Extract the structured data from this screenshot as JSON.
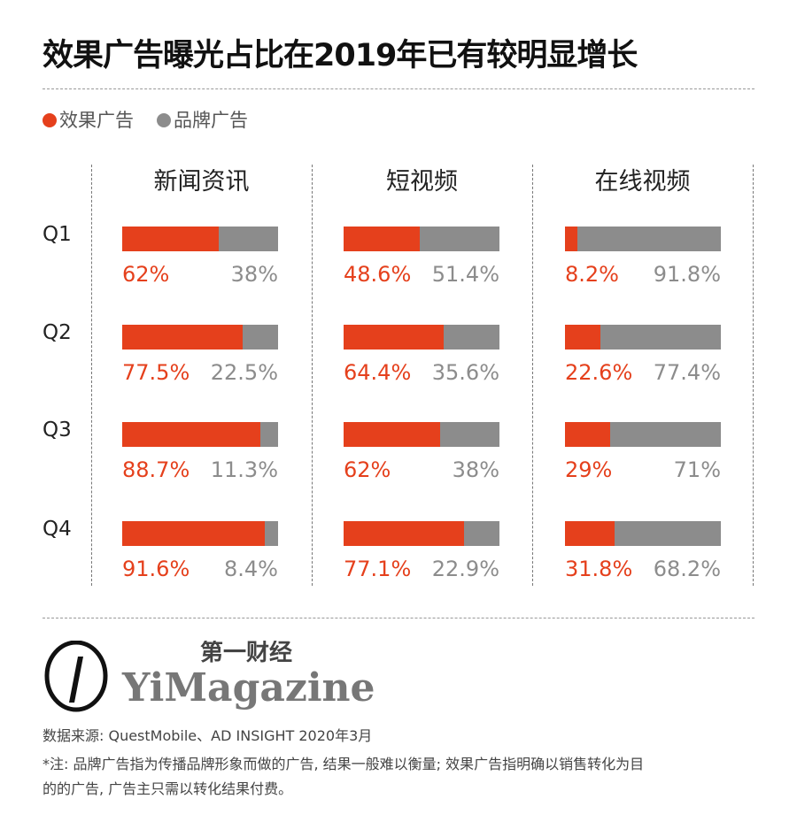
{
  "title": "效果广告曝光占比在2019年已有较明显增长",
  "legend": [
    {
      "label": "效果广告",
      "color": "#e5401c"
    },
    {
      "label": "品牌广告",
      "color": "#8c8c8c"
    }
  ],
  "chart_data": {
    "type": "bar",
    "stacked": true,
    "orientation": "horizontal",
    "title": "效果广告曝光占比在2019年已有较明显增长",
    "categories": [
      "Q1",
      "Q2",
      "Q3",
      "Q4"
    ],
    "panels": [
      {
        "name": "新闻资讯",
        "series": [
          {
            "name": "效果广告",
            "values": [
              62,
              77.5,
              88.7,
              91.6
            ],
            "labels": [
              "62%",
              "77.5%",
              "88.7%",
              "91.6%"
            ]
          },
          {
            "name": "品牌广告",
            "values": [
              38,
              22.5,
              11.3,
              8.4
            ],
            "labels": [
              "38%",
              "22.5%",
              "11.3%",
              "8.4%"
            ]
          }
        ]
      },
      {
        "name": "短视频",
        "series": [
          {
            "name": "效果广告",
            "values": [
              48.6,
              64.4,
              62,
              77.1
            ],
            "labels": [
              "48.6%",
              "64.4%",
              "62%",
              "77.1%"
            ]
          },
          {
            "name": "品牌广告",
            "values": [
              51.4,
              35.6,
              38,
              22.9
            ],
            "labels": [
              "51.4%",
              "35.6%",
              "38%",
              "22.9%"
            ]
          }
        ]
      },
      {
        "name": "在线视频",
        "series": [
          {
            "name": "效果广告",
            "values": [
              8.2,
              22.6,
              29,
              31.8
            ],
            "labels": [
              "8.2%",
              "22.6%",
              "29%",
              "31.8%"
            ]
          },
          {
            "name": "品牌广告",
            "values": [
              91.8,
              77.4,
              71,
              68.2
            ],
            "labels": [
              "91.8%",
              "77.4%",
              "71%",
              "68.2%"
            ]
          }
        ]
      }
    ],
    "colors": {
      "效果广告": "#e5401c",
      "品牌广告": "#8c8c8c"
    },
    "xlim": [
      0,
      100
    ],
    "grid": false,
    "legend_position": "top-left"
  },
  "logo": {
    "cn": "第一财经",
    "en": "YiMagazine"
  },
  "source": "数据来源: QuestMobile、AD INSIGHT 2020年3月",
  "note_line1": "*注: 品牌广告指为传播品牌形象而做的广告, 结果一般难以衡量; 效果广告指明确以销售转化为目",
  "note_line2": "的的广告, 广告主只需以转化结果付费。"
}
